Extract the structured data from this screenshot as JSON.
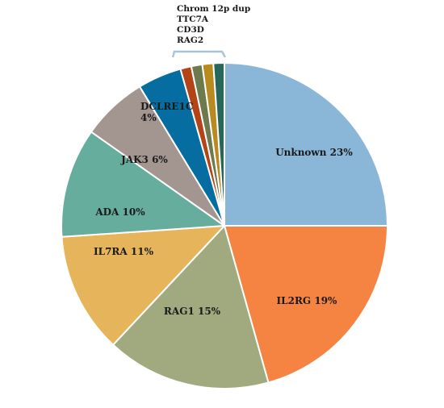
{
  "chart_data": {
    "type": "pie",
    "title": "",
    "slices": [
      {
        "label": "Unknown 23%",
        "value": 23,
        "color": "#8ab7d8"
      },
      {
        "label": "IL2RG 19%",
        "value": 19,
        "color": "#f58442"
      },
      {
        "label": "RAG1 15%",
        "value": 15,
        "color": "#a1aa7e"
      },
      {
        "label": "IL7RA 11%",
        "value": 11,
        "color": "#e6b45a"
      },
      {
        "label": "ADA 10%",
        "value": 10,
        "color": "#66ad9d"
      },
      {
        "label": "JAK3 6%",
        "value": 6,
        "color": "#a39590"
      },
      {
        "label": "DCLRE1C 4%",
        "value": 4,
        "color": "#056da0"
      },
      {
        "label": "Chrom 12p dup",
        "value": 1,
        "color": "#b24418"
      },
      {
        "label": "TTC7A",
        "value": 1,
        "color": "#6c7a4e"
      },
      {
        "label": "CD3D",
        "value": 1,
        "color": "#b88a20"
      },
      {
        "label": "RAG2",
        "value": 1,
        "color": "#27665a"
      }
    ],
    "small_group_labels": [
      "Chrom 12p dup",
      "TTC7A",
      "CD3D",
      "RAG2"
    ],
    "legend": "none"
  }
}
